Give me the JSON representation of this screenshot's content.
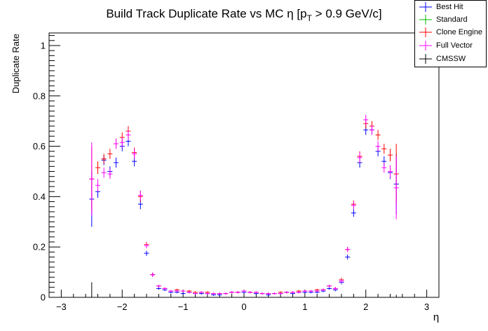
{
  "chart_data": {
    "type": "scatter",
    "title_main": "Build Track Duplicate Rate vs MC η [p",
    "title_sub": "T",
    "title_tail": " > 0.9 GeV/c]",
    "xlabel": "η",
    "ylabel": "Duplicate Rate",
    "xlim": [
      -3.2,
      3.2
    ],
    "ylim": [
      0,
      1.05
    ],
    "x_ticks": [
      -3,
      -2,
      -1,
      0,
      1,
      2,
      3
    ],
    "x_tick_labels": [
      "−3",
      "−2",
      "−1",
      "0",
      "1",
      "2",
      "3"
    ],
    "y_ticks": [
      0,
      0.2,
      0.4,
      0.6,
      0.8,
      1
    ],
    "y_tick_labels": [
      "0",
      "0.2",
      "0.4",
      "0.6",
      "0.8",
      "1"
    ],
    "bin_half_width": 0.04,
    "legend_placement": "top-right",
    "series": [
      {
        "name": "Best Hit",
        "color": "#0000ff",
        "x": [
          -2.5,
          -2.4,
          -2.3,
          -2.2,
          -2.1,
          -2.0,
          -1.9,
          -1.8,
          -1.7,
          -1.6,
          -1.5,
          -1.4,
          -1.3,
          -1.2,
          -1.1,
          -1.0,
          -0.9,
          -0.8,
          -0.7,
          -0.6,
          -0.5,
          -0.4,
          -0.3,
          -0.2,
          -0.1,
          0.0,
          0.1,
          0.2,
          0.3,
          0.4,
          0.5,
          0.6,
          0.7,
          0.8,
          0.9,
          1.0,
          1.1,
          1.2,
          1.3,
          1.4,
          1.5,
          1.6,
          1.7,
          1.8,
          1.9,
          2.0,
          2.1,
          2.2,
          2.3,
          2.4,
          2.5
        ],
        "y": [
          0.39,
          0.42,
          0.545,
          0.5,
          0.535,
          0.6,
          0.62,
          0.54,
          0.37,
          0.175,
          0.09,
          0.035,
          0.03,
          0.02,
          0.02,
          0.015,
          0.02,
          0.015,
          0.015,
          0.015,
          0.01,
          0.01,
          0.015,
          0.02,
          0.02,
          0.02,
          0.02,
          0.015,
          0.015,
          0.01,
          0.015,
          0.015,
          0.02,
          0.015,
          0.02,
          0.02,
          0.02,
          0.02,
          0.025,
          0.035,
          0.03,
          0.06,
          0.16,
          0.335,
          0.535,
          0.665,
          0.665,
          0.58,
          0.54,
          0.495,
          0.45
        ],
        "err": [
          0.11,
          0.025,
          0.02,
          0.02,
          0.02,
          0.02,
          0.02,
          0.02,
          0.02,
          0.01,
          0.008,
          0.005,
          0.005,
          0.004,
          0.004,
          0.004,
          0.004,
          0.004,
          0.004,
          0.004,
          0.004,
          0.004,
          0.004,
          0.004,
          0.004,
          0.004,
          0.004,
          0.004,
          0.004,
          0.004,
          0.004,
          0.004,
          0.004,
          0.004,
          0.004,
          0.004,
          0.004,
          0.004,
          0.005,
          0.005,
          0.006,
          0.008,
          0.01,
          0.015,
          0.02,
          0.02,
          0.02,
          0.02,
          0.02,
          0.025,
          0.12
        ]
      },
      {
        "name": "Standard",
        "color": "#00bb00",
        "x": [],
        "y": [],
        "err": []
      },
      {
        "name": "Clone Engine",
        "color": "#ff0000",
        "x": [
          -2.5,
          -2.4,
          -2.3,
          -2.2,
          -2.1,
          -2.0,
          -1.9,
          -1.8,
          -1.7,
          -1.6,
          -1.5,
          -1.4,
          -1.3,
          -1.2,
          -1.1,
          -1.0,
          -0.9,
          -0.8,
          -0.7,
          -0.6,
          -0.5,
          -0.4,
          -0.3,
          -0.2,
          -0.1,
          0.0,
          0.1,
          0.2,
          0.3,
          0.4,
          0.5,
          0.6,
          0.7,
          0.8,
          0.9,
          1.0,
          1.1,
          1.2,
          1.3,
          1.4,
          1.5,
          1.6,
          1.7,
          1.8,
          1.9,
          2.0,
          2.1,
          2.2,
          2.3,
          2.4,
          2.5
        ],
        "y": [
          0.47,
          0.515,
          0.55,
          0.57,
          0.61,
          0.635,
          0.66,
          0.575,
          0.4,
          0.21,
          0.09,
          0.045,
          0.035,
          0.025,
          0.03,
          0.025,
          0.025,
          0.02,
          0.02,
          0.02,
          0.015,
          0.015,
          0.015,
          0.02,
          0.02,
          0.025,
          0.02,
          0.02,
          0.015,
          0.015,
          0.015,
          0.02,
          0.02,
          0.02,
          0.025,
          0.025,
          0.025,
          0.03,
          0.03,
          0.045,
          0.035,
          0.07,
          0.19,
          0.37,
          0.56,
          0.69,
          0.68,
          0.645,
          0.59,
          0.565,
          0.49
        ],
        "err": [
          0.13,
          0.025,
          0.02,
          0.02,
          0.02,
          0.02,
          0.02,
          0.02,
          0.02,
          0.01,
          0.008,
          0.005,
          0.005,
          0.004,
          0.004,
          0.004,
          0.004,
          0.004,
          0.004,
          0.004,
          0.004,
          0.004,
          0.004,
          0.004,
          0.004,
          0.004,
          0.004,
          0.004,
          0.004,
          0.004,
          0.004,
          0.004,
          0.004,
          0.004,
          0.004,
          0.004,
          0.004,
          0.004,
          0.005,
          0.005,
          0.006,
          0.008,
          0.01,
          0.015,
          0.02,
          0.02,
          0.02,
          0.02,
          0.02,
          0.025,
          0.12
        ]
      },
      {
        "name": "Full Vector",
        "color": "#ff00ff",
        "x": [
          -2.5,
          -2.4,
          -2.3,
          -2.2,
          -2.1,
          -2.0,
          -1.9,
          -1.8,
          -1.7,
          -1.6,
          -1.5,
          -1.4,
          -1.3,
          -1.2,
          -1.1,
          -1.0,
          -0.9,
          -0.8,
          -0.7,
          -0.6,
          -0.5,
          -0.4,
          -0.3,
          -0.2,
          -0.1,
          0.0,
          0.1,
          0.2,
          0.3,
          0.4,
          0.5,
          0.6,
          0.7,
          0.8,
          0.9,
          1.0,
          1.1,
          1.2,
          1.3,
          1.4,
          1.5,
          1.6,
          1.7,
          1.8,
          1.9,
          2.0,
          2.1,
          2.2,
          2.3,
          2.4,
          2.5
        ],
        "y": [
          0.47,
          0.445,
          0.495,
          0.49,
          0.61,
          0.615,
          0.645,
          0.57,
          0.405,
          0.205,
          0.09,
          0.045,
          0.035,
          0.025,
          0.025,
          0.025,
          0.02,
          0.015,
          0.02,
          0.015,
          0.015,
          0.015,
          0.015,
          0.02,
          0.02,
          0.025,
          0.02,
          0.02,
          0.015,
          0.015,
          0.015,
          0.015,
          0.02,
          0.02,
          0.02,
          0.025,
          0.025,
          0.025,
          0.03,
          0.045,
          0.035,
          0.065,
          0.19,
          0.365,
          0.555,
          0.705,
          0.665,
          0.6,
          0.515,
          0.5,
          0.435
        ],
        "err": [
          0.145,
          0.025,
          0.02,
          0.02,
          0.02,
          0.02,
          0.02,
          0.02,
          0.02,
          0.01,
          0.008,
          0.005,
          0.005,
          0.004,
          0.004,
          0.004,
          0.004,
          0.004,
          0.004,
          0.004,
          0.004,
          0.004,
          0.004,
          0.004,
          0.004,
          0.004,
          0.004,
          0.004,
          0.004,
          0.004,
          0.004,
          0.004,
          0.004,
          0.004,
          0.004,
          0.004,
          0.004,
          0.004,
          0.005,
          0.005,
          0.006,
          0.008,
          0.01,
          0.015,
          0.02,
          0.02,
          0.02,
          0.02,
          0.02,
          0.025,
          0.125
        ]
      },
      {
        "name": "CMSSW",
        "color": "#000000",
        "x": [
          -2.5,
          -2.4,
          2.5
        ],
        "y": [
          0.0,
          0.0,
          0.0
        ],
        "err": [
          0.06,
          0.005,
          0.01
        ]
      }
    ]
  }
}
